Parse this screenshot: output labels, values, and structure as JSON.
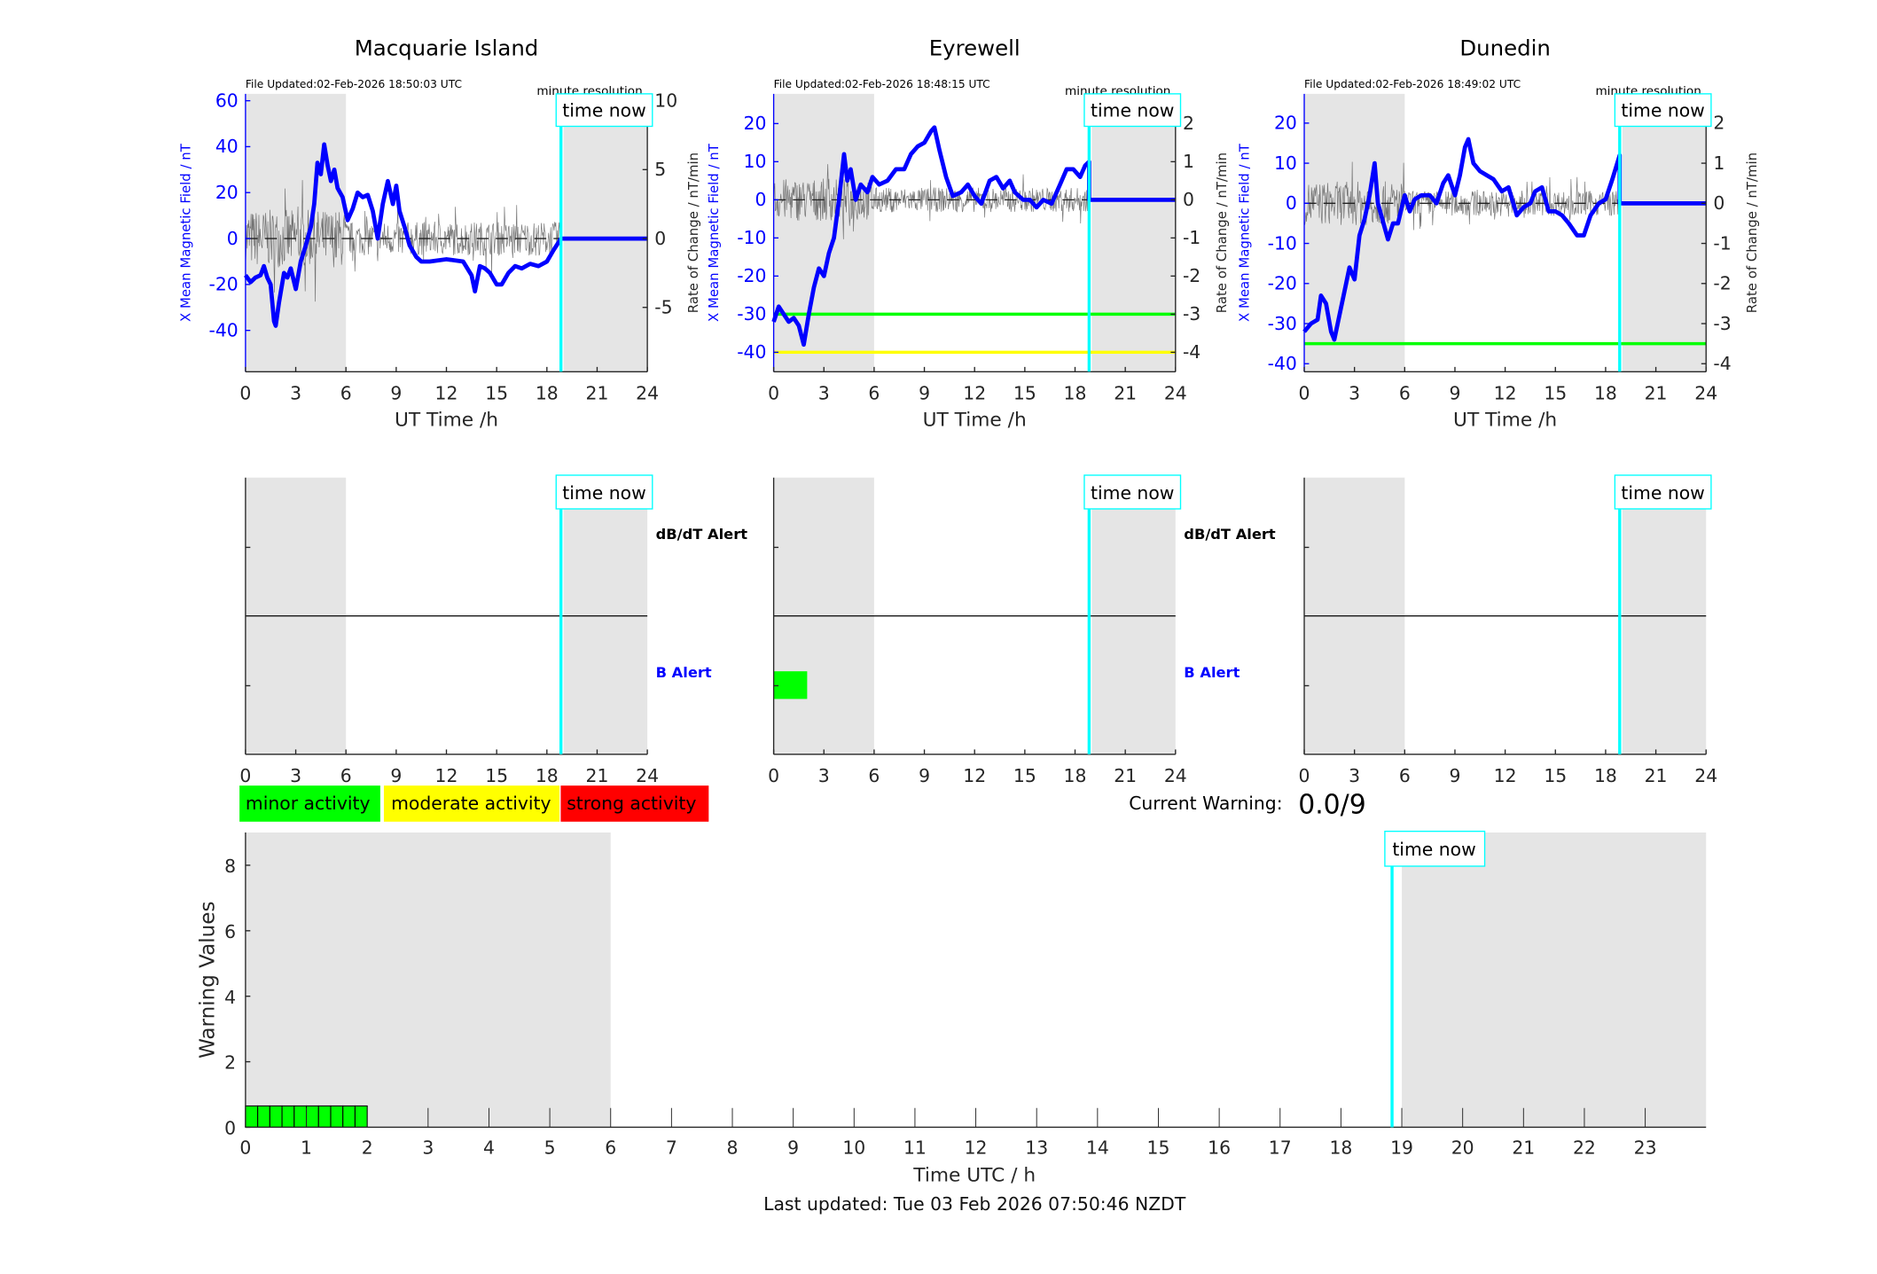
{
  "colors": {
    "field": "#0000ff",
    "rate": "#3a3a3a",
    "night_shade": "#e5e5e5",
    "time_now": "#00ffff",
    "minor": "#00ff00",
    "moderate": "#ffff00",
    "strong": "#ff0000"
  },
  "legend": {
    "minor": "minor activity",
    "moderate": "moderate activity",
    "strong": "strong activity"
  },
  "current_warning": {
    "label": "Current Warning:",
    "value": "0.0/9"
  },
  "last_updated": "Last updated: Tue 03 Feb 2026 07:50:46 NZDT",
  "chart_data": [
    {
      "type": "line",
      "title": "Macquarie Island",
      "file_updated": "File Updated:02-Feb-2026 18:50:03 UTC",
      "resolution": "minute resolution",
      "time_now_label": "time now",
      "time_now": 18.84,
      "xlabel": "UT Time /h",
      "ylabel": "X Mean Magnetic Field / nT",
      "ylabel_right": "Rate of Change / nT/min",
      "xlim": [
        0,
        24
      ],
      "xticks": [
        0,
        3,
        6,
        9,
        12,
        15,
        18,
        21,
        24
      ],
      "ylim": [
        -58,
        63
      ],
      "yticks": [
        -40,
        -20,
        0,
        20,
        40,
        60
      ],
      "ylim_right": [
        -9.67,
        10.5
      ],
      "yticks_right": [
        -5,
        0,
        5,
        10
      ],
      "night_bands": [
        [
          0,
          6
        ],
        [
          19,
          24
        ]
      ],
      "thresholds": [],
      "series": [
        {
          "points": [
            [
              0,
              -16
            ],
            [
              0.3,
              -19
            ],
            [
              0.6,
              -17
            ],
            [
              0.9,
              -16
            ],
            [
              1.1,
              -12
            ],
            [
              1.3,
              -17
            ],
            [
              1.5,
              -20
            ],
            [
              1.7,
              -36
            ],
            [
              1.8,
              -38
            ],
            [
              2.0,
              -28
            ],
            [
              2.3,
              -15
            ],
            [
              2.5,
              -17
            ],
            [
              2.7,
              -13
            ],
            [
              3.0,
              -22
            ],
            [
              3.3,
              -10
            ],
            [
              3.6,
              -3
            ],
            [
              3.9,
              5
            ],
            [
              4.1,
              15
            ],
            [
              4.3,
              33
            ],
            [
              4.5,
              28
            ],
            [
              4.7,
              41
            ],
            [
              4.9,
              32
            ],
            [
              5.1,
              25
            ],
            [
              5.3,
              30
            ],
            [
              5.5,
              22
            ],
            [
              5.8,
              18
            ],
            [
              6.1,
              8
            ],
            [
              6.4,
              13
            ],
            [
              6.7,
              20
            ],
            [
              7.0,
              18
            ],
            [
              7.3,
              19
            ],
            [
              7.6,
              12
            ],
            [
              7.9,
              0
            ],
            [
              8.2,
              15
            ],
            [
              8.5,
              25
            ],
            [
              8.8,
              15
            ],
            [
              9.0,
              23
            ],
            [
              9.2,
              12
            ],
            [
              9.5,
              5
            ],
            [
              9.8,
              -3
            ],
            [
              10.2,
              -8
            ],
            [
              10.5,
              -10
            ],
            [
              11,
              -10
            ],
            [
              12,
              -9
            ],
            [
              13,
              -10
            ],
            [
              13.5,
              -16
            ],
            [
              13.7,
              -23
            ],
            [
              14,
              -12
            ],
            [
              14.3,
              -13
            ],
            [
              14.6,
              -15
            ],
            [
              15,
              -20
            ],
            [
              15.3,
              -20
            ],
            [
              15.7,
              -15
            ],
            [
              16.1,
              -12
            ],
            [
              16.5,
              -13
            ],
            [
              17,
              -11
            ],
            [
              17.5,
              -12
            ],
            [
              18,
              -10
            ],
            [
              18.4,
              -5
            ],
            [
              18.84,
              0
            ],
            [
              24,
              0
            ]
          ]
        }
      ],
      "alerts": {
        "dbdt_label": "dB/dT Alert",
        "b_label": "B Alert",
        "b_alert_periods": []
      }
    },
    {
      "type": "line",
      "title": "Eyrewell",
      "file_updated": "File Updated:02-Feb-2026 18:48:15 UTC",
      "resolution": "minute resolution",
      "time_now_label": "time now",
      "time_now": 18.84,
      "xlabel": "UT Time /h",
      "ylabel": "X Mean Magnetic Field / nT",
      "ylabel_right": "Rate of Change / nT/min",
      "xlim": [
        0,
        24
      ],
      "xticks": [
        0,
        3,
        6,
        9,
        12,
        15,
        18,
        21,
        24
      ],
      "ylim": [
        -45.1,
        27.8
      ],
      "yticks": [
        -40,
        -30,
        -20,
        -10,
        0,
        10,
        20
      ],
      "ylim_right": [
        -4.51,
        2.78
      ],
      "yticks_right": [
        -4,
        -3,
        -2,
        -1,
        0,
        1,
        2
      ],
      "night_bands": [
        [
          0,
          6
        ],
        [
          19,
          24
        ]
      ],
      "thresholds": [
        {
          "value": -30,
          "color": "#00ff00"
        },
        {
          "value": -40,
          "color": "#ffff00"
        }
      ],
      "series": [
        {
          "points": [
            [
              0,
              -32
            ],
            [
              0.3,
              -28
            ],
            [
              0.6,
              -30
            ],
            [
              0.9,
              -32
            ],
            [
              1.2,
              -31
            ],
            [
              1.5,
              -33
            ],
            [
              1.8,
              -38
            ],
            [
              2.1,
              -30
            ],
            [
              2.4,
              -23
            ],
            [
              2.7,
              -18
            ],
            [
              3.0,
              -20
            ],
            [
              3.3,
              -14
            ],
            [
              3.6,
              -10
            ],
            [
              3.9,
              0
            ],
            [
              4.2,
              12
            ],
            [
              4.4,
              5
            ],
            [
              4.6,
              8
            ],
            [
              4.9,
              0
            ],
            [
              5.2,
              4
            ],
            [
              5.6,
              2
            ],
            [
              5.9,
              6
            ],
            [
              6.3,
              4
            ],
            [
              6.8,
              5
            ],
            [
              7.3,
              8
            ],
            [
              7.8,
              8
            ],
            [
              8.2,
              12
            ],
            [
              8.6,
              14
            ],
            [
              9.0,
              15
            ],
            [
              9.4,
              18
            ],
            [
              9.6,
              19
            ],
            [
              9.9,
              13
            ],
            [
              10.3,
              6
            ],
            [
              10.7,
              1
            ],
            [
              11.2,
              2
            ],
            [
              11.6,
              4
            ],
            [
              12.0,
              1
            ],
            [
              12.4,
              -1
            ],
            [
              12.9,
              5
            ],
            [
              13.3,
              6
            ],
            [
              13.7,
              3
            ],
            [
              14.1,
              5
            ],
            [
              14.4,
              2
            ],
            [
              14.9,
              0
            ],
            [
              15.3,
              0
            ],
            [
              15.7,
              -2
            ],
            [
              16.1,
              0
            ],
            [
              16.6,
              -1
            ],
            [
              17.1,
              4
            ],
            [
              17.5,
              8
            ],
            [
              17.9,
              8
            ],
            [
              18.3,
              6
            ],
            [
              18.6,
              9
            ],
            [
              18.84,
              10
            ],
            [
              18.84,
              0
            ],
            [
              24,
              0
            ]
          ]
        }
      ],
      "alerts": {
        "dbdt_label": "dB/dT Alert",
        "b_label": "B Alert",
        "b_alert_periods": [
          [
            0,
            2
          ]
        ]
      }
    },
    {
      "type": "line",
      "title": "Dunedin",
      "file_updated": "File Updated:02-Feb-2026 18:49:02 UTC",
      "resolution": "minute resolution",
      "time_now_label": "time now",
      "time_now": 18.84,
      "xlabel": "UT Time /h",
      "ylabel": "X Mean Magnetic Field / nT",
      "ylabel_right": "Rate of Change / nT/min",
      "xlim": [
        0,
        24
      ],
      "xticks": [
        0,
        3,
        6,
        9,
        12,
        15,
        18,
        21,
        24
      ],
      "ylim": [
        -42,
        27.3
      ],
      "yticks": [
        -40,
        -30,
        -20,
        -10,
        0,
        10,
        20
      ],
      "ylim_right": [
        -4.2,
        2.73
      ],
      "yticks_right": [
        -4,
        -3,
        -2,
        -1,
        0,
        1,
        2
      ],
      "night_bands": [
        [
          0,
          6
        ],
        [
          19,
          24
        ]
      ],
      "thresholds": [
        {
          "value": -35,
          "color": "#00ff00"
        }
      ],
      "series": [
        {
          "points": [
            [
              0,
              -32
            ],
            [
              0.4,
              -30
            ],
            [
              0.8,
              -29
            ],
            [
              1.0,
              -23
            ],
            [
              1.3,
              -25
            ],
            [
              1.6,
              -32
            ],
            [
              1.8,
              -34
            ],
            [
              2.1,
              -28
            ],
            [
              2.5,
              -20
            ],
            [
              2.7,
              -16
            ],
            [
              3.0,
              -19
            ],
            [
              3.3,
              -8
            ],
            [
              3.6,
              -4
            ],
            [
              3.9,
              2
            ],
            [
              4.2,
              10
            ],
            [
              4.4,
              0
            ],
            [
              4.8,
              -6
            ],
            [
              5.0,
              -9
            ],
            [
              5.3,
              -5
            ],
            [
              5.6,
              -5
            ],
            [
              6.0,
              2
            ],
            [
              6.3,
              -2
            ],
            [
              6.6,
              1
            ],
            [
              7.0,
              2
            ],
            [
              7.5,
              2
            ],
            [
              7.9,
              0
            ],
            [
              8.3,
              5
            ],
            [
              8.6,
              7
            ],
            [
              9.0,
              2
            ],
            [
              9.3,
              7
            ],
            [
              9.6,
              14
            ],
            [
              9.8,
              16
            ],
            [
              10.1,
              10
            ],
            [
              10.5,
              8
            ],
            [
              10.9,
              7
            ],
            [
              11.3,
              6
            ],
            [
              11.8,
              3
            ],
            [
              12.2,
              4
            ],
            [
              12.7,
              -3
            ],
            [
              13.1,
              -1
            ],
            [
              13.5,
              0
            ],
            [
              13.8,
              3
            ],
            [
              14.2,
              4
            ],
            [
              14.6,
              -2
            ],
            [
              15,
              -2
            ],
            [
              15.4,
              -3
            ],
            [
              15.8,
              -5
            ],
            [
              16.3,
              -8
            ],
            [
              16.7,
              -8
            ],
            [
              17.1,
              -3
            ],
            [
              17.6,
              0
            ],
            [
              18.0,
              1
            ],
            [
              18.4,
              6
            ],
            [
              18.84,
              12
            ],
            [
              18.84,
              0
            ],
            [
              24,
              0
            ]
          ]
        }
      ],
      "alerts": {
        "dbdt_label": "",
        "b_label": "",
        "b_alert_periods": []
      }
    },
    {
      "type": "bar",
      "xlabel": "Time UTC / h",
      "ylabel": "Warning Values",
      "time_now_label": "time now",
      "time_now": 18.84,
      "xlim": [
        0,
        24
      ],
      "xticks": [
        0,
        1,
        2,
        3,
        4,
        5,
        6,
        7,
        8,
        9,
        10,
        11,
        12,
        13,
        14,
        15,
        16,
        17,
        18,
        19,
        20,
        21,
        22,
        23
      ],
      "ylim": [
        0,
        9
      ],
      "yticks": [
        0,
        2,
        4,
        6,
        8
      ],
      "night_bands": [
        [
          0,
          6
        ],
        [
          19,
          24
        ]
      ],
      "bars": [
        {
          "start": 0,
          "end": 0.2,
          "value": 0.65
        },
        {
          "start": 0.2,
          "end": 0.4,
          "value": 0.65
        },
        {
          "start": 0.4,
          "end": 0.6,
          "value": 0.65
        },
        {
          "start": 0.6,
          "end": 0.8,
          "value": 0.65
        },
        {
          "start": 0.8,
          "end": 1.0,
          "value": 0.65
        },
        {
          "start": 1.0,
          "end": 1.2,
          "value": 0.65
        },
        {
          "start": 1.2,
          "end": 1.4,
          "value": 0.65
        },
        {
          "start": 1.4,
          "end": 1.6,
          "value": 0.65
        },
        {
          "start": 1.6,
          "end": 1.8,
          "value": 0.65
        },
        {
          "start": 1.8,
          "end": 2.0,
          "value": 0.65
        }
      ]
    }
  ]
}
